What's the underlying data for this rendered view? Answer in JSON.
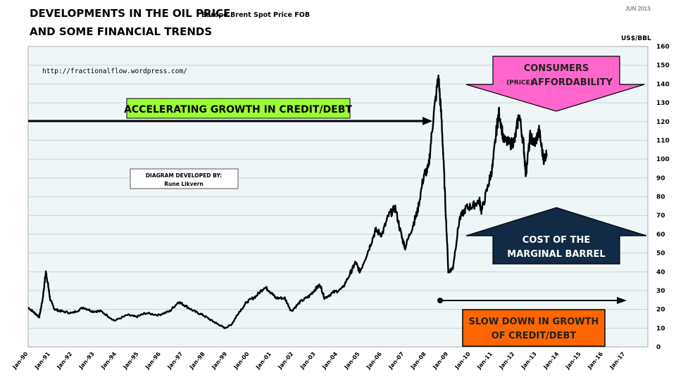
{
  "chart_data": {
    "type": "line",
    "title": "DEVELOPMENTS IN THE OIL PRICE",
    "title_line2": "AND SOME FINANCIAL TRENDS",
    "subtitle": "Europe Brent Spot Price FOB",
    "date_label": "JUN 2013",
    "ylabel": "US$/BBL",
    "ylim": [
      0,
      160
    ],
    "yticks": [
      0,
      10,
      20,
      30,
      40,
      50,
      60,
      70,
      80,
      90,
      100,
      110,
      120,
      130,
      140,
      150,
      160
    ],
    "xlim": [
      1990,
      2017
    ],
    "xticks": [
      "Jan-90",
      "Jan-91",
      "Jan-92",
      "Jan-93",
      "Jan-94",
      "Jan-95",
      "Jan-96",
      "Jan-97",
      "Jan-98",
      "Jan-99",
      "Jan-00",
      "Jan-01",
      "Jan-02",
      "Jan-03",
      "Jan-04",
      "Jan-05",
      "Jan-06",
      "Jan-07",
      "Jan-08",
      "Jan-09",
      "Jan-10",
      "Jan-11",
      "Jan-12",
      "Jan-13",
      "Jan-14",
      "Jan-15",
      "Jan-16",
      "Jan-17"
    ],
    "grid": true,
    "series": [
      {
        "name": "Europe Brent Spot Price FOB",
        "color": "#000000",
        "x": [
          1990.0,
          1990.3,
          1990.5,
          1990.65,
          1990.8,
          1990.9,
          1991.0,
          1991.2,
          1991.5,
          1992.0,
          1992.5,
          1992.9,
          1993.3,
          1993.9,
          1994.5,
          1994.9,
          1995.3,
          1995.9,
          1996.4,
          1996.8,
          1997.1,
          1997.5,
          1997.9,
          1998.3,
          1998.6,
          1998.9,
          1999.2,
          1999.5,
          1999.9,
          2000.3,
          2000.7,
          2000.9,
          2001.2,
          2001.6,
          2001.9,
          2002.3,
          2002.7,
          2003.0,
          2003.2,
          2003.4,
          2003.8,
          2004.2,
          2004.6,
          2004.8,
          2005.0,
          2005.4,
          2005.7,
          2006.0,
          2006.3,
          2006.6,
          2006.9,
          2007.05,
          2007.4,
          2007.6,
          2007.9,
          2008.1,
          2008.3,
          2008.55,
          2008.7,
          2008.85,
          2009.0,
          2009.2,
          2009.5,
          2009.8,
          2010.1,
          2010.4,
          2010.5,
          2010.8,
          2011.0,
          2011.2,
          2011.3,
          2011.5,
          2011.8,
          2012.0,
          2012.2,
          2012.4,
          2012.5,
          2012.7,
          2012.9,
          2013.1,
          2013.3,
          2013.45
        ],
        "y": [
          21,
          18,
          16,
          25,
          40,
          33,
          25,
          20,
          19,
          18,
          21,
          19,
          19,
          14,
          17,
          16,
          18,
          17,
          19,
          24,
          22,
          19,
          17,
          14,
          12,
          10,
          12,
          18,
          24,
          27,
          32,
          30,
          26,
          26,
          19,
          24,
          27,
          31,
          33,
          26,
          29,
          31,
          40,
          45,
          40,
          52,
          62,
          60,
          70,
          74,
          58,
          53,
          65,
          72,
          92,
          95,
          120,
          144,
          120,
          80,
          40,
          42,
          68,
          74,
          75,
          78,
          72,
          86,
          96,
          118,
          125,
          110,
          108,
          110,
          124,
          108,
          92,
          112,
          108,
          115,
          100,
          103
        ]
      }
    ]
  },
  "annotations": {
    "url": "http://fractionalflow.wordpress.com/",
    "credit_title": "DIAGRAM DEVELOPED BY:",
    "credit_name": "Rune Likvern",
    "accelerating": "ACCELERATING GROWTH IN CREDIT/DEBT",
    "consumers_line1": "CONSUMERS",
    "consumers_price": "(PRICE)",
    "consumers_line2": "AFFORDABILITY",
    "cost_line1": "COST OF THE",
    "cost_line2": "MARGINAL BARREL",
    "slowdown_line1": "SLOW DOWN IN GROWTH",
    "slowdown_line2": "OF CREDIT/DEBT"
  },
  "colors": {
    "plot_bg": "#eef6f8",
    "grid": "#c8d4d8",
    "green": "#99ff33",
    "pink": "#ff66cc",
    "navy": "#112a45",
    "orange": "#ff6600"
  }
}
